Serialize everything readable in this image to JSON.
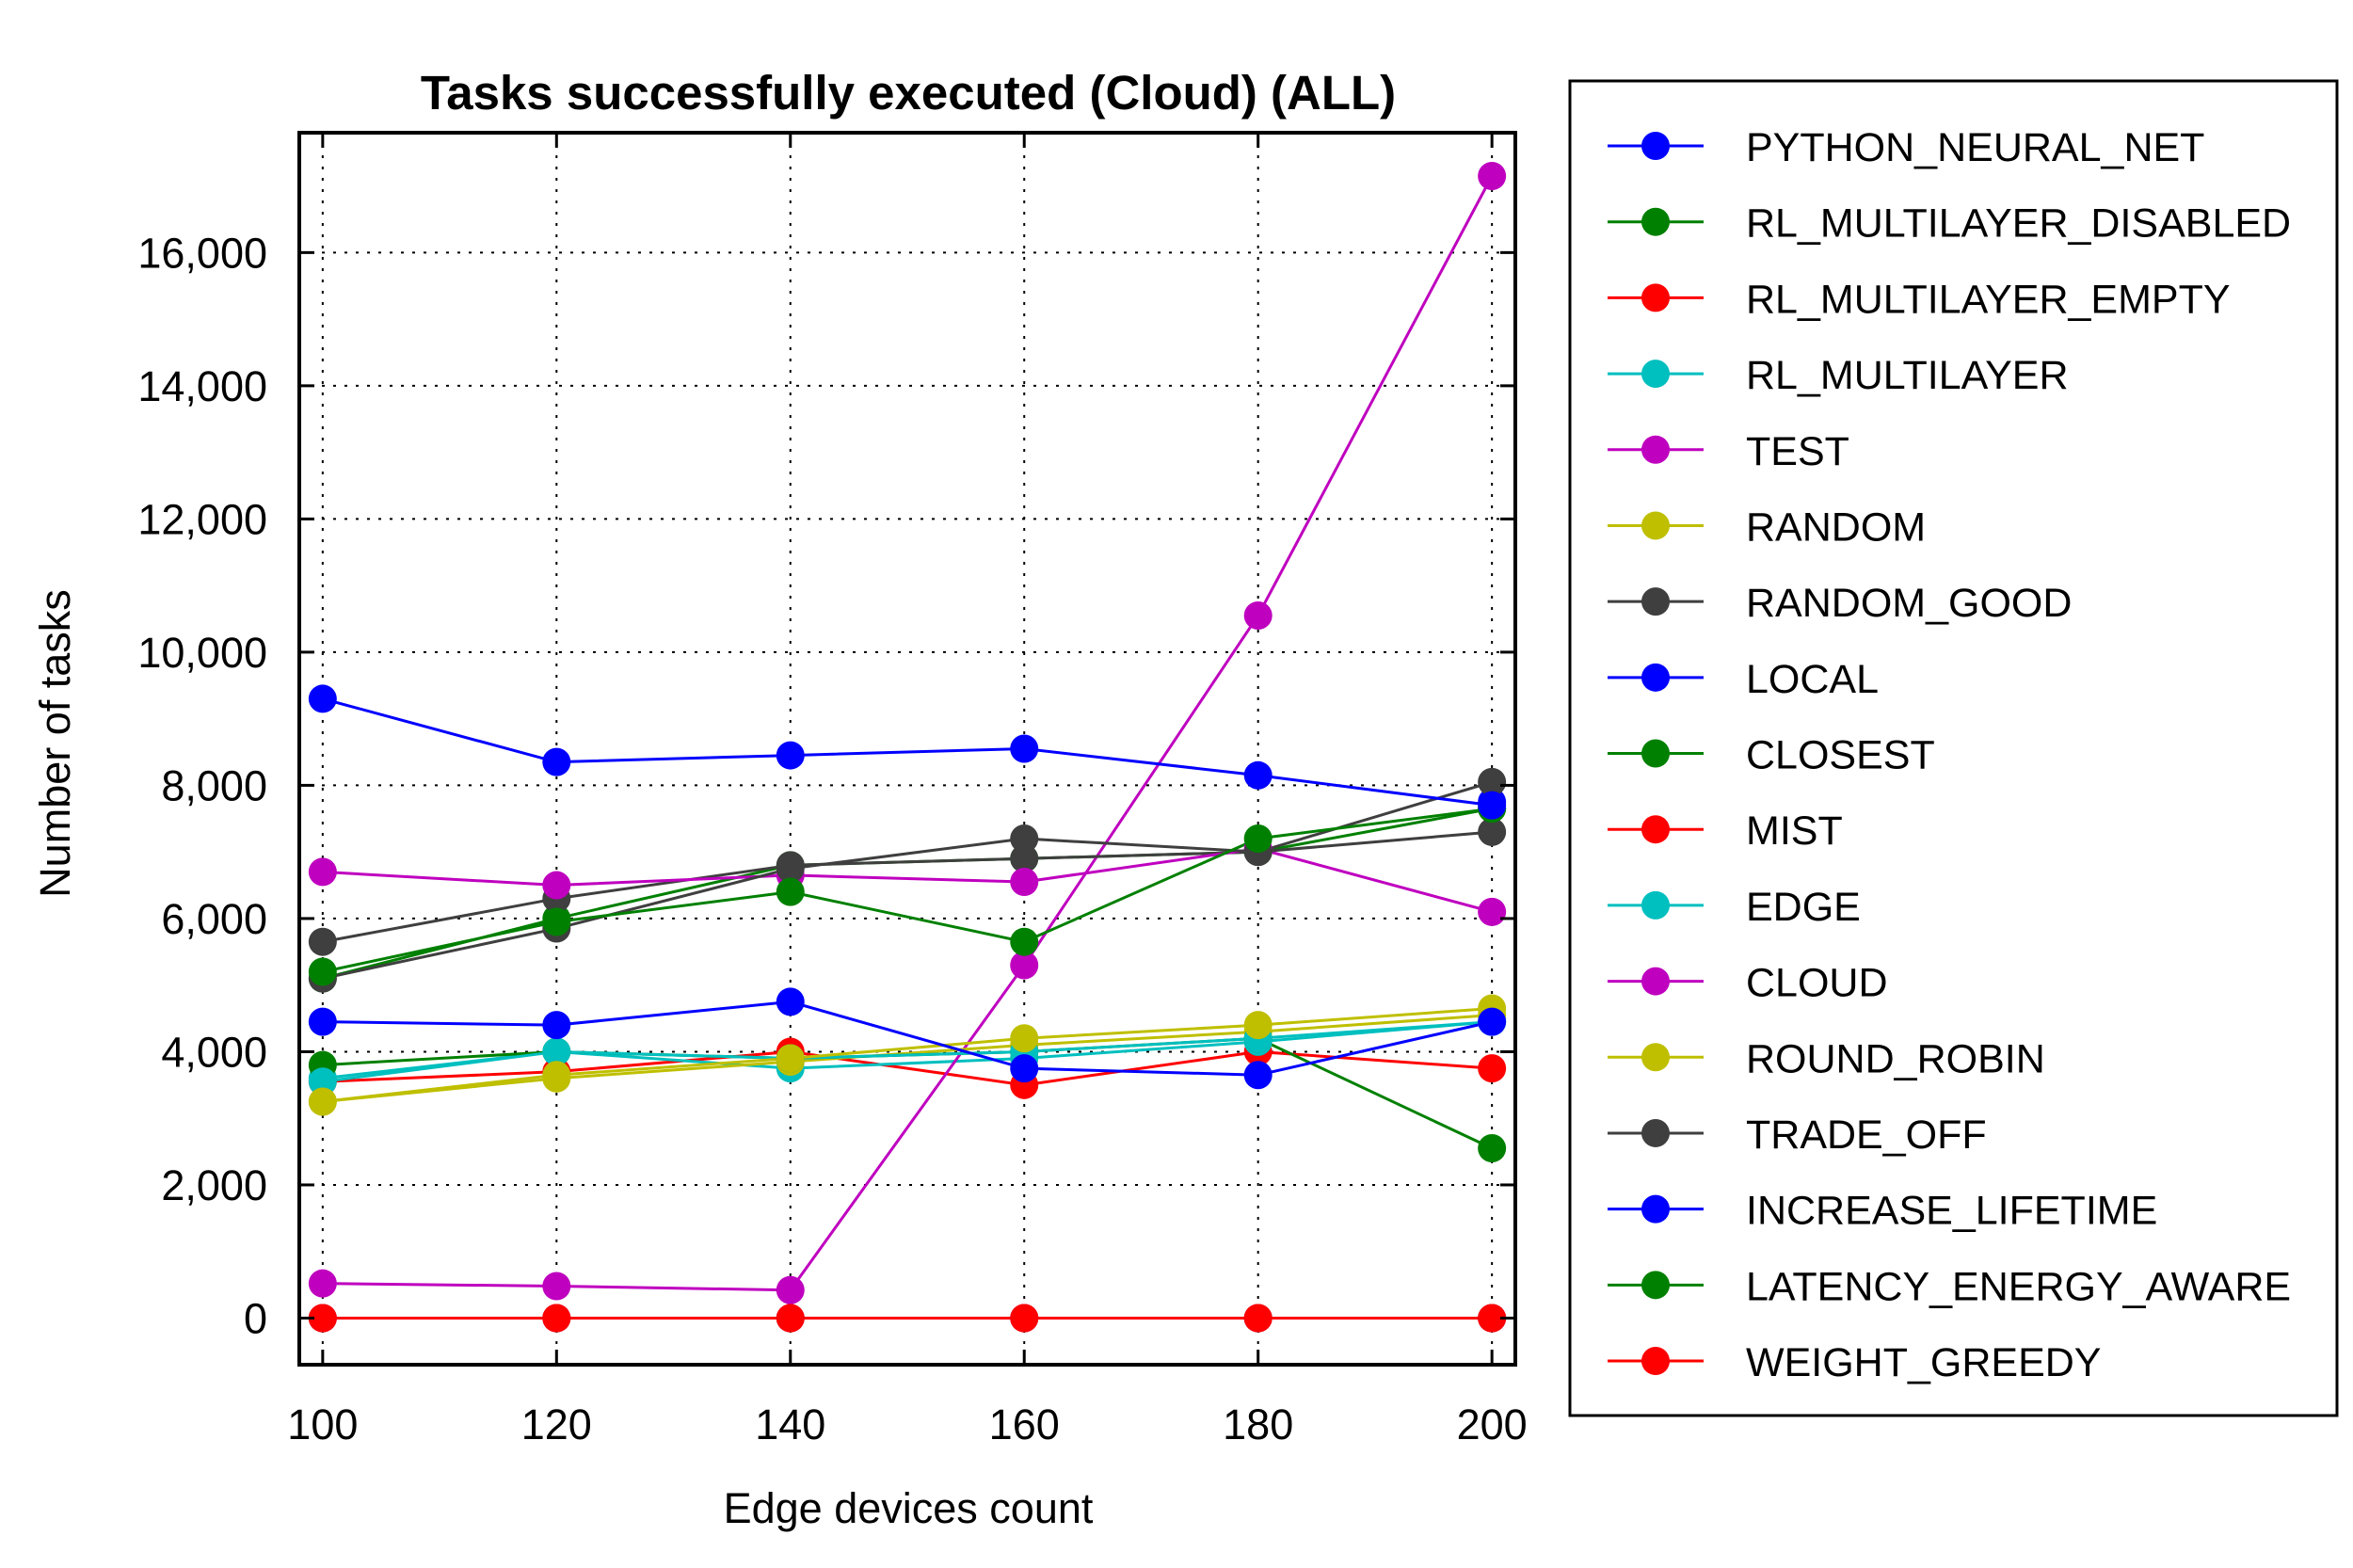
{
  "chart_data": {
    "type": "line",
    "title": "Tasks successfully executed (Cloud) (ALL)",
    "xlabel": "Edge devices count",
    "ylabel": "Number of tasks",
    "x": [
      100,
      120,
      140,
      160,
      180,
      200
    ],
    "x_ticks": [
      "100",
      "120",
      "140",
      "160",
      "180",
      "200"
    ],
    "y_ticks": [
      0,
      2000,
      4000,
      6000,
      8000,
      10000,
      12000,
      14000,
      16000
    ],
    "y_tick_labels": [
      "0",
      "2,000",
      "4,000",
      "6,000",
      "8,000",
      "10,000",
      "12,000",
      "14,000",
      "16,000"
    ],
    "xlim": [
      98,
      202
    ],
    "ylim": [
      -700,
      17800
    ],
    "grid": true,
    "legend_position": "outside-right",
    "series": [
      {
        "name": "PYTHON_NEURAL_NET",
        "color": "#0000ff",
        "values": [
          null,
          null,
          null,
          null,
          null,
          7750
        ]
      },
      {
        "name": "RL_MULTILAYER_DISABLED",
        "color": "#008000",
        "values": [
          5100,
          6000,
          6800,
          6900,
          7000,
          7650
        ]
      },
      {
        "name": "RL_MULTILAYER_EMPTY",
        "color": "#ff0000",
        "values": [
          3550,
          3700,
          4000,
          3500,
          4000,
          3750
        ]
      },
      {
        "name": "RL_MULTILAYER",
        "color": "#00bfbf",
        "values": [
          3600,
          4000,
          3750,
          3900,
          4150,
          4450
        ]
      },
      {
        "name": "TEST",
        "color": "#bf00bf",
        "values": [
          520,
          480,
          420,
          5300,
          10550,
          17150
        ]
      },
      {
        "name": "RANDOM",
        "color": "#bfbf00",
        "values": [
          3250,
          3600,
          3850,
          4100,
          4300,
          4550
        ]
      },
      {
        "name": "RANDOM_GOOD",
        "color": "#3f3f3f",
        "values": [
          5650,
          6300,
          6800,
          6900,
          7000,
          8050
        ]
      },
      {
        "name": "LOCAL",
        "color": "#0000ff",
        "values": [
          0,
          0,
          0,
          0,
          0,
          0
        ]
      },
      {
        "name": "CLOSEST",
        "color": "#008000",
        "values": [
          3800,
          4000,
          3900,
          4000,
          4200,
          2550
        ]
      },
      {
        "name": "MIST",
        "color": "#ff0000",
        "values": [
          0,
          0,
          0,
          0,
          0,
          0
        ]
      },
      {
        "name": "EDGE",
        "color": "#00bfbf",
        "values": [
          3550,
          4000,
          3900,
          4000,
          4200,
          4450
        ]
      },
      {
        "name": "CLOUD",
        "color": "#bf00bf",
        "values": [
          6700,
          6500,
          6650,
          6550,
          7050,
          6100
        ]
      },
      {
        "name": "ROUND_ROBIN",
        "color": "#bfbf00",
        "values": [
          3250,
          3650,
          3900,
          4200,
          4400,
          4650
        ]
      },
      {
        "name": "TRADE_OFF",
        "color": "#3f3f3f",
        "values": [
          5100,
          5850,
          6750,
          7200,
          7000,
          7300
        ]
      },
      {
        "name": "INCREASE_LIFETIME",
        "color": "#0000ff",
        "values": [
          4450,
          4400,
          4750,
          3750,
          3650,
          4450
        ]
      },
      {
        "name": "LATENCY_ENERGY_AWARE",
        "color": "#008000",
        "values": [
          5200,
          5950,
          6400,
          5650,
          7200,
          7650
        ]
      },
      {
        "name": "WEIGHT_GREEDY",
        "color": "#ff0000",
        "values": [
          0,
          0,
          0,
          0,
          0,
          0
        ]
      },
      {
        "name": "PYTHON_NEURAL_NET (upper)",
        "legend": false,
        "color": "#0000ff",
        "values": [
          9300,
          8350,
          8450,
          8550,
          8150,
          7700
        ]
      }
    ]
  }
}
